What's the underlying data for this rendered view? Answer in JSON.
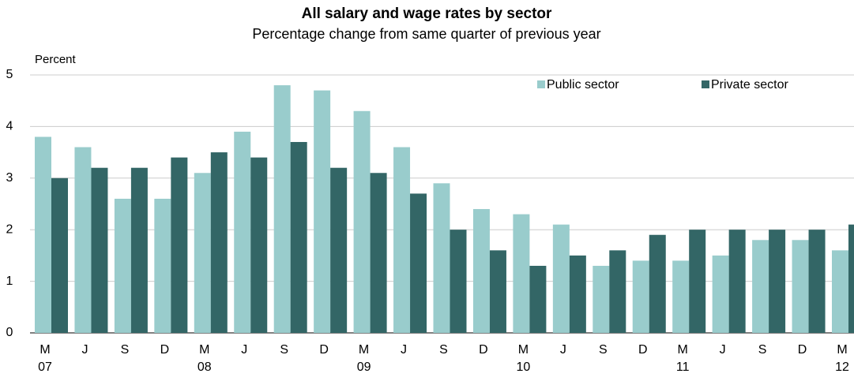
{
  "chart_data": {
    "type": "bar",
    "title": "All salary and wage rates by sector",
    "subtitle": "Percentage change from same quarter of previous year",
    "y_axis_label": "Percent",
    "categories": [
      "M",
      "J",
      "S",
      "D",
      "M",
      "J",
      "S",
      "D",
      "M",
      "J",
      "S",
      "D",
      "M",
      "J",
      "S",
      "D",
      "M",
      "J",
      "S",
      "D",
      "M"
    ],
    "years": [
      "07",
      null,
      null,
      null,
      "08",
      null,
      null,
      null,
      "09",
      null,
      null,
      null,
      "10",
      null,
      null,
      null,
      "11",
      null,
      null,
      null,
      "12"
    ],
    "series": [
      {
        "name": "Public sector",
        "color": "#99cccc",
        "values": [
          3.8,
          3.6,
          2.6,
          2.6,
          3.1,
          3.9,
          4.8,
          4.7,
          4.3,
          3.6,
          2.9,
          2.4,
          2.3,
          2.1,
          1.3,
          1.4,
          1.4,
          1.5,
          1.8,
          1.8,
          1.6
        ]
      },
      {
        "name": "Private sector",
        "color": "#336666",
        "values": [
          3.0,
          3.2,
          3.2,
          3.4,
          3.5,
          3.4,
          3.7,
          3.2,
          3.1,
          2.7,
          2.0,
          1.6,
          1.3,
          1.5,
          1.6,
          1.9,
          2.0,
          2.0,
          2.0,
          2.0,
          2.1
        ]
      }
    ],
    "ylim": [
      0,
      5
    ],
    "yticks": [
      0,
      1,
      2,
      3,
      4,
      5
    ],
    "grid": true,
    "legend": "top-right"
  }
}
